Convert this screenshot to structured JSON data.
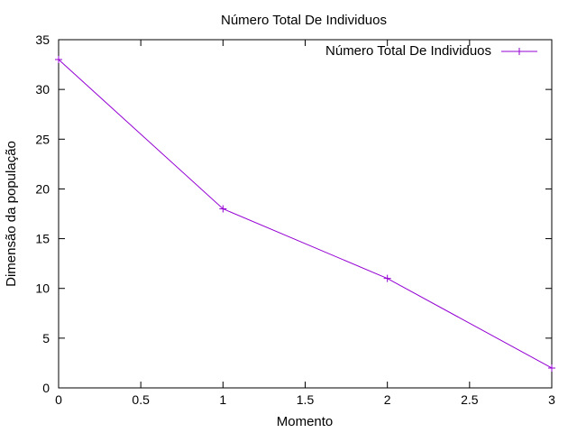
{
  "chart_data": {
    "type": "line",
    "title": "Número Total De Individuos",
    "xlabel": "Momento",
    "ylabel": "Dimensão da população",
    "xlim": [
      0,
      3
    ],
    "ylim": [
      0,
      35
    ],
    "x_ticks": [
      0,
      0.5,
      1,
      1.5,
      2,
      2.5,
      3
    ],
    "y_ticks": [
      0,
      5,
      10,
      15,
      20,
      25,
      30,
      35
    ],
    "grid": false,
    "legend_position": "top-right",
    "series": [
      {
        "name": "Número Total De Individuos",
        "color": "#9400d3",
        "marker": "plus",
        "x": [
          0,
          1,
          2,
          3
        ],
        "y": [
          33,
          18,
          11,
          2
        ]
      }
    ]
  }
}
